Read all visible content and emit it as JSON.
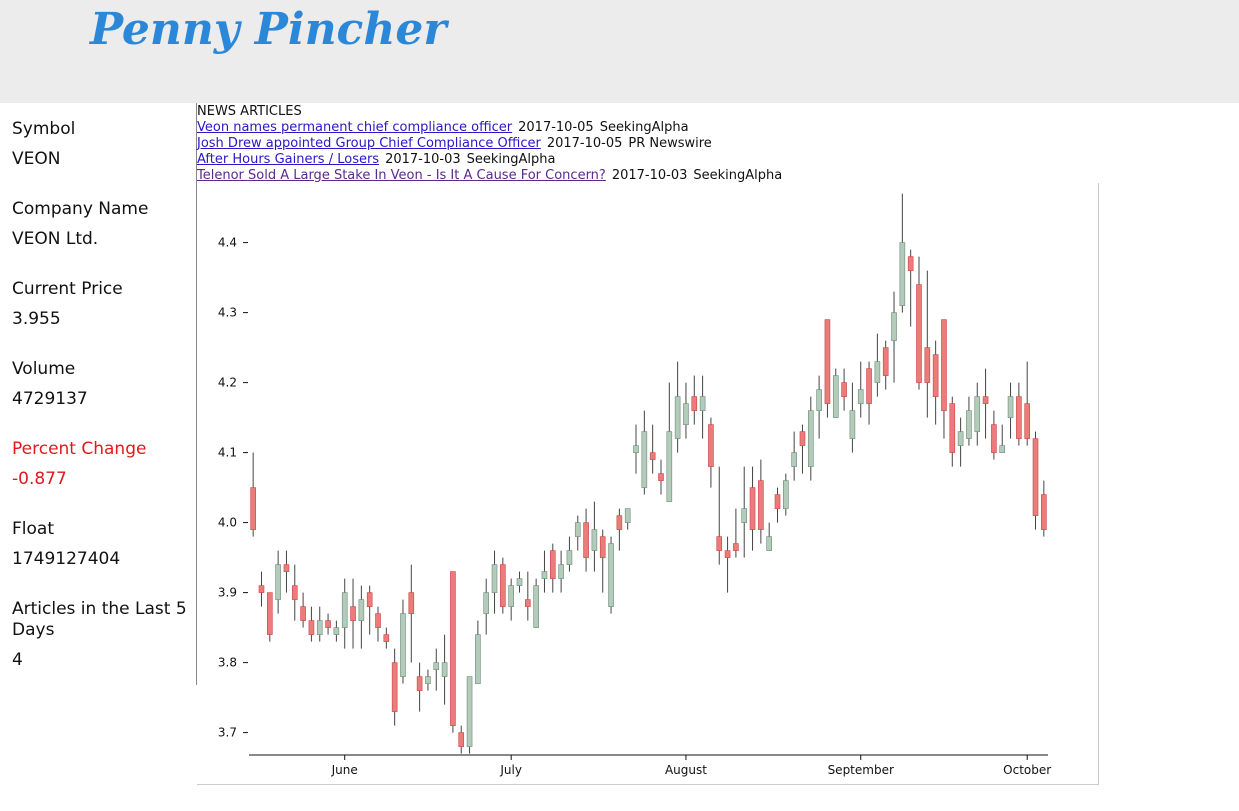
{
  "header": {
    "title": "Penny Pincher"
  },
  "sidebar": {
    "fields": [
      {
        "label": "Symbol",
        "value": "VEON"
      },
      {
        "label": "Company Name",
        "value": "VEON Ltd."
      },
      {
        "label": "Current Price",
        "value": "3.955"
      },
      {
        "label": "Volume",
        "value": "4729137"
      },
      {
        "label": "Percent Change",
        "value": "-0.877"
      },
      {
        "label": "Float",
        "value": "1749127404"
      },
      {
        "label": "Articles in the Last 5 Days",
        "value": "4"
      }
    ]
  },
  "news": {
    "heading": "NEWS ARTICLES",
    "articles": [
      {
        "title": "Veon names permanent chief compliance officer",
        "date": "2017-10-05",
        "source": "SeekingAlpha"
      },
      {
        "title": "Josh Drew appointed Group Chief Compliance Officer",
        "date": "2017-10-05",
        "source": "PR Newswire"
      },
      {
        "title": "After Hours Gainers / Losers",
        "date": "2017-10-03",
        "source": "SeekingAlpha"
      },
      {
        "title": "Telenor Sold A Large Stake In Veon - Is It A Cause For Concern?",
        "date": "2017-10-03",
        "source": "SeekingAlpha"
      }
    ]
  },
  "chart_data": {
    "type": "candlestick",
    "categories": [
      null,
      null,
      null,
      null,
      null,
      null,
      null,
      null,
      null,
      null,
      null,
      "June",
      null,
      null,
      null,
      null,
      null,
      null,
      null,
      null,
      null,
      null,
      null,
      null,
      null,
      null,
      null,
      null,
      null,
      null,
      null,
      "July",
      null,
      null,
      null,
      null,
      null,
      null,
      null,
      null,
      null,
      null,
      null,
      null,
      null,
      null,
      null,
      null,
      null,
      null,
      null,
      null,
      "August",
      null,
      null,
      null,
      null,
      null,
      null,
      null,
      null,
      null,
      null,
      null,
      null,
      null,
      null,
      null,
      null,
      null,
      null,
      null,
      null,
      "September",
      null,
      null,
      null,
      null,
      null,
      null,
      null,
      null,
      null,
      null,
      null,
      null,
      null,
      null,
      null,
      null,
      null,
      null,
      null,
      "October",
      null,
      null
    ],
    "open": [
      4.05,
      3.91,
      3.9,
      3.89,
      3.94,
      3.91,
      3.88,
      3.86,
      3.84,
      3.86,
      3.84,
      3.85,
      3.88,
      3.86,
      3.9,
      3.87,
      3.84,
      3.8,
      3.78,
      3.9,
      3.78,
      3.77,
      3.79,
      3.78,
      3.93,
      3.7,
      3.68,
      3.77,
      3.87,
      3.9,
      3.94,
      3.88,
      3.91,
      3.89,
      3.85,
      3.92,
      3.96,
      3.92,
      3.94,
      3.98,
      4.0,
      3.96,
      3.98,
      3.88,
      4.01,
      4.0,
      4.1,
      4.05,
      4.1,
      4.07,
      4.03,
      4.12,
      4.14,
      4.18,
      4.16,
      4.14,
      3.98,
      3.96,
      3.97,
      4.0,
      4.05,
      4.06,
      3.96,
      4.04,
      4.02,
      4.08,
      4.13,
      4.08,
      4.16,
      4.29,
      4.15,
      4.2,
      4.12,
      4.17,
      4.22,
      4.2,
      4.25,
      4.26,
      4.31,
      4.38,
      4.34,
      4.25,
      4.24,
      4.29,
      4.17,
      4.11,
      4.12,
      4.13,
      4.18,
      4.14,
      4.1,
      4.15,
      4.18,
      4.17,
      4.12,
      4.04
    ],
    "high": [
      4.1,
      3.93,
      3.9,
      3.96,
      3.96,
      3.94,
      3.9,
      3.88,
      3.88,
      3.87,
      3.86,
      3.92,
      3.92,
      3.91,
      3.91,
      3.88,
      3.85,
      3.82,
      3.89,
      3.94,
      3.8,
      3.79,
      3.82,
      3.84,
      3.93,
      3.71,
      3.78,
      3.86,
      3.92,
      3.96,
      3.95,
      3.92,
      3.93,
      3.93,
      3.92,
      3.96,
      3.97,
      3.96,
      3.98,
      4.01,
      4.02,
      4.03,
      3.99,
      3.98,
      4.02,
      4.02,
      4.14,
      4.16,
      4.14,
      4.09,
      4.2,
      4.23,
      4.2,
      4.21,
      4.21,
      4.15,
      4.08,
      3.98,
      4.02,
      4.08,
      4.08,
      4.09,
      4.0,
      4.05,
      4.07,
      4.13,
      4.14,
      4.18,
      4.21,
      4.29,
      4.22,
      4.22,
      4.2,
      4.23,
      4.23,
      4.27,
      4.26,
      4.33,
      4.47,
      4.39,
      4.38,
      4.36,
      4.26,
      4.29,
      4.18,
      4.15,
      4.18,
      4.2,
      4.22,
      4.16,
      4.14,
      4.2,
      4.2,
      4.23,
      4.13,
      4.06
    ],
    "low": [
      3.98,
      3.88,
      3.83,
      3.87,
      3.9,
      3.86,
      3.85,
      3.83,
      3.83,
      3.84,
      3.83,
      3.82,
      3.82,
      3.82,
      3.84,
      3.83,
      3.82,
      3.71,
      3.77,
      3.8,
      3.73,
      3.76,
      3.76,
      3.74,
      3.7,
      3.67,
      3.67,
      3.77,
      3.84,
      3.87,
      3.87,
      3.86,
      3.9,
      3.86,
      3.85,
      3.9,
      3.9,
      3.9,
      3.93,
      3.96,
      3.93,
      3.93,
      3.9,
      3.87,
      3.96,
      3.99,
      4.07,
      4.04,
      4.07,
      4.04,
      4.03,
      4.1,
      4.12,
      4.14,
      4.12,
      4.05,
      3.94,
      3.9,
      3.95,
      3.95,
      3.96,
      3.97,
      3.96,
      4.0,
      4.01,
      4.06,
      4.07,
      4.06,
      4.12,
      4.15,
      4.15,
      4.16,
      4.1,
      4.15,
      4.14,
      4.18,
      4.19,
      4.2,
      4.3,
      4.28,
      4.19,
      4.15,
      4.14,
      4.12,
      4.08,
      4.08,
      4.11,
      4.11,
      4.12,
      4.09,
      4.1,
      4.12,
      4.11,
      4.11,
      3.99,
      3.98
    ],
    "close": [
      3.99,
      3.9,
      3.84,
      3.94,
      3.93,
      3.89,
      3.86,
      3.84,
      3.86,
      3.85,
      3.85,
      3.9,
      3.86,
      3.89,
      3.88,
      3.85,
      3.83,
      3.73,
      3.87,
      3.87,
      3.76,
      3.78,
      3.8,
      3.8,
      3.71,
      3.68,
      3.78,
      3.84,
      3.9,
      3.94,
      3.88,
      3.91,
      3.92,
      3.88,
      3.91,
      3.93,
      3.92,
      3.94,
      3.96,
      4.0,
      3.95,
      3.99,
      3.95,
      3.97,
      3.99,
      4.02,
      4.11,
      4.13,
      4.09,
      4.06,
      4.13,
      4.18,
      4.17,
      4.16,
      4.18,
      4.08,
      3.96,
      3.95,
      3.96,
      4.02,
      3.99,
      3.99,
      3.98,
      4.02,
      4.06,
      4.1,
      4.11,
      4.16,
      4.19,
      4.17,
      4.21,
      4.18,
      4.16,
      4.19,
      4.17,
      4.23,
      4.21,
      4.3,
      4.4,
      4.36,
      4.2,
      4.2,
      4.18,
      4.16,
      4.1,
      4.13,
      4.16,
      4.18,
      4.17,
      4.1,
      4.11,
      4.18,
      4.12,
      4.12,
      4.01,
      3.99
    ],
    "up_color": "#b3cbbb",
    "down_color": "#ec7b7b",
    "ylim": [
      3.668,
      4.48
    ],
    "yticks": [
      3.7,
      3.8,
      3.9,
      {
        "value": 4,
        "label": "4.0"
      },
      4.1,
      4.2,
      4.3,
      4.4
    ]
  }
}
